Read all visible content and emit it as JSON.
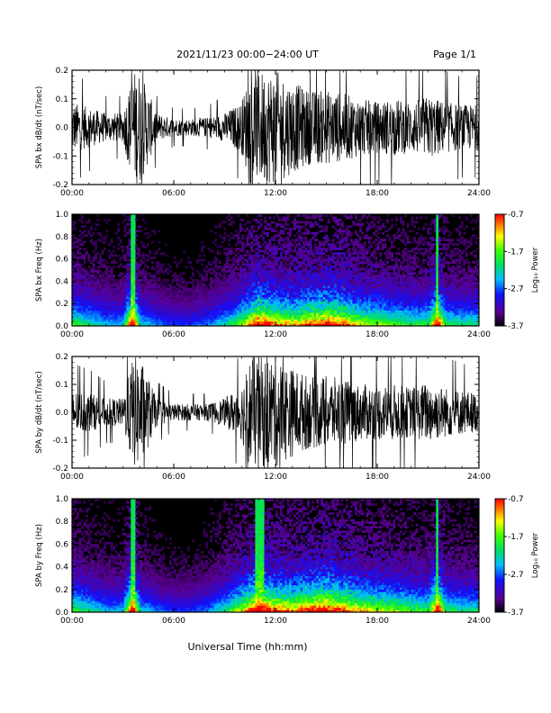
{
  "header": {
    "title": "2021/11/23  00:00−24:00 UT",
    "page": "Page 1/1"
  },
  "footer": {
    "xlabel": "Universal Time (hh:mm)"
  },
  "chart_data": [
    {
      "type": "line",
      "ylabel": "SPA bx dB/dt (nT/sec)",
      "xlim": [
        0,
        24
      ],
      "ylim": [
        -0.2,
        0.2
      ],
      "xticks": [
        "00:00",
        "06:00",
        "12:00",
        "18:00",
        "24:00"
      ],
      "yticks": [
        "-0.2",
        "-0.1",
        "0.0",
        "0.1",
        "0.2"
      ],
      "envelope": {
        "hour": [
          0,
          1,
          2,
          3,
          3.6,
          4,
          5,
          6,
          7,
          8,
          9,
          10,
          10.5,
          11,
          12,
          13,
          14,
          15,
          16,
          17,
          18,
          19,
          20,
          21,
          22,
          23,
          24
        ],
        "amplitude": [
          0.09,
          0.07,
          0.05,
          0.05,
          0.2,
          0.2,
          0.05,
          0.03,
          0.03,
          0.035,
          0.05,
          0.09,
          0.2,
          0.2,
          0.2,
          0.16,
          0.13,
          0.13,
          0.12,
          0.1,
          0.09,
          0.1,
          0.09,
          0.11,
          0.09,
          0.08,
          0.08
        ]
      }
    },
    {
      "type": "heatmap",
      "ylabel": "SPA bx Freq (Hz)",
      "xlim": [
        0,
        24
      ],
      "ylim": [
        0,
        1
      ],
      "xticks": [
        "00:00",
        "06:00",
        "12:00",
        "18:00",
        "24:00"
      ],
      "yticks": [
        "0.0",
        "0.2",
        "0.4",
        "0.6",
        "0.8",
        "1.0"
      ],
      "colorbar": {
        "label": "Log₁₀ Power",
        "range": [
          -3.7,
          -0.7
        ],
        "ticks": [
          "-0.7",
          "-1.7",
          "-2.7",
          "-3.7"
        ]
      },
      "activity": {
        "hour": [
          0,
          1,
          2,
          3,
          3.6,
          4,
          5,
          6,
          7,
          8,
          9,
          10,
          11,
          12,
          13,
          14,
          15,
          16,
          17,
          18,
          19,
          20,
          21,
          21.6,
          22,
          23,
          24
        ],
        "level": [
          0.55,
          0.45,
          0.35,
          0.35,
          1.0,
          0.4,
          0.3,
          0.25,
          0.25,
          0.3,
          0.4,
          0.6,
          0.9,
          0.75,
          0.7,
          0.8,
          0.85,
          0.8,
          0.65,
          0.6,
          0.55,
          0.5,
          0.5,
          0.95,
          0.5,
          0.45,
          0.45
        ]
      }
    },
    {
      "type": "line",
      "ylabel": "SPA by dB/dt (nT/sec)",
      "xlim": [
        0,
        24
      ],
      "ylim": [
        -0.2,
        0.2
      ],
      "xticks": [
        "00:00",
        "06:00",
        "12:00",
        "18:00",
        "24:00"
      ],
      "yticks": [
        "-0.2",
        "-0.1",
        "0.0",
        "0.1",
        "0.2"
      ],
      "envelope": {
        "hour": [
          0,
          1,
          2,
          3,
          3.6,
          4,
          5,
          6,
          7,
          8,
          9,
          10,
          10.5,
          11,
          12,
          13,
          14,
          15,
          16,
          17,
          18,
          19,
          20,
          21,
          22,
          23,
          24
        ],
        "amplitude": [
          0.08,
          0.07,
          0.05,
          0.05,
          0.2,
          0.2,
          0.05,
          0.03,
          0.03,
          0.03,
          0.05,
          0.1,
          0.2,
          0.2,
          0.2,
          0.16,
          0.13,
          0.13,
          0.12,
          0.1,
          0.1,
          0.1,
          0.09,
          0.11,
          0.09,
          0.08,
          0.07
        ]
      }
    },
    {
      "type": "heatmap",
      "ylabel": "SPA by Freq (Hz)",
      "xlim": [
        0,
        24
      ],
      "ylim": [
        0,
        1
      ],
      "xticks": [
        "00:00",
        "06:00",
        "12:00",
        "18:00",
        "24:00"
      ],
      "yticks": [
        "0.0",
        "0.2",
        "0.4",
        "0.6",
        "0.8",
        "1.0"
      ],
      "colorbar": {
        "label": "Log₁₀ Power",
        "range": [
          -3.7,
          -0.7
        ],
        "ticks": [
          "-0.7",
          "-1.7",
          "-2.7",
          "-3.7"
        ]
      },
      "activity": {
        "hour": [
          0,
          1,
          2,
          3,
          3.6,
          4,
          5,
          6,
          7,
          8,
          9,
          10,
          11,
          12,
          13,
          14,
          15,
          16,
          17,
          18,
          19,
          20,
          21,
          21.6,
          22,
          23,
          24
        ],
        "level": [
          0.55,
          0.45,
          0.35,
          0.35,
          1.0,
          0.4,
          0.3,
          0.25,
          0.25,
          0.3,
          0.45,
          0.65,
          0.95,
          0.8,
          0.75,
          0.85,
          0.9,
          0.8,
          0.7,
          0.65,
          0.6,
          0.55,
          0.5,
          0.95,
          0.5,
          0.45,
          0.45
        ]
      }
    }
  ]
}
